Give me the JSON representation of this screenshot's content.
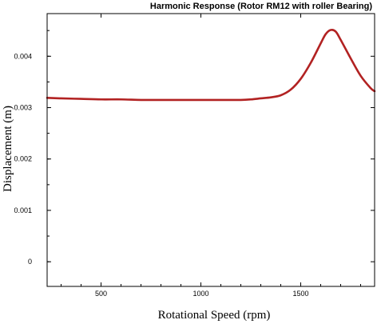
{
  "chart_data": {
    "type": "line",
    "title": "Harmonic Response (Rotor RM12 with roller Bearing)",
    "xlabel": "Rotational Speed (rpm)",
    "ylabel": "Displacement (m)",
    "xlim": [
      230,
      1870
    ],
    "ylim": [
      -0.00048,
      0.00483
    ],
    "x_ticks": [
      500,
      1000,
      1500
    ],
    "x_tick_labels": [
      "500",
      "1000",
      "1500"
    ],
    "y_ticks": [
      0,
      0.001,
      0.002,
      0.003,
      0.004
    ],
    "y_tick_labels": [
      "0",
      "0.001",
      "0.002",
      "0.003",
      "0.004"
    ],
    "grid": false,
    "legend": false,
    "series": [
      {
        "color": "#b22222",
        "x": [
          230,
          300,
          400,
          500,
          600,
          700,
          800,
          900,
          1000,
          1100,
          1200,
          1250,
          1300,
          1350,
          1400,
          1450,
          1500,
          1550,
          1600,
          1625,
          1650,
          1675,
          1700,
          1750,
          1800,
          1850,
          1870
        ],
        "y": [
          0.00319,
          0.00318,
          0.00317,
          0.00316,
          0.00316,
          0.00315,
          0.00315,
          0.00315,
          0.00315,
          0.00315,
          0.00315,
          0.00316,
          0.00318,
          0.0032,
          0.00324,
          0.00335,
          0.00356,
          0.00387,
          0.00425,
          0.00443,
          0.00451,
          0.00448,
          0.00432,
          0.00396,
          0.00362,
          0.00338,
          0.00332
        ]
      }
    ]
  }
}
